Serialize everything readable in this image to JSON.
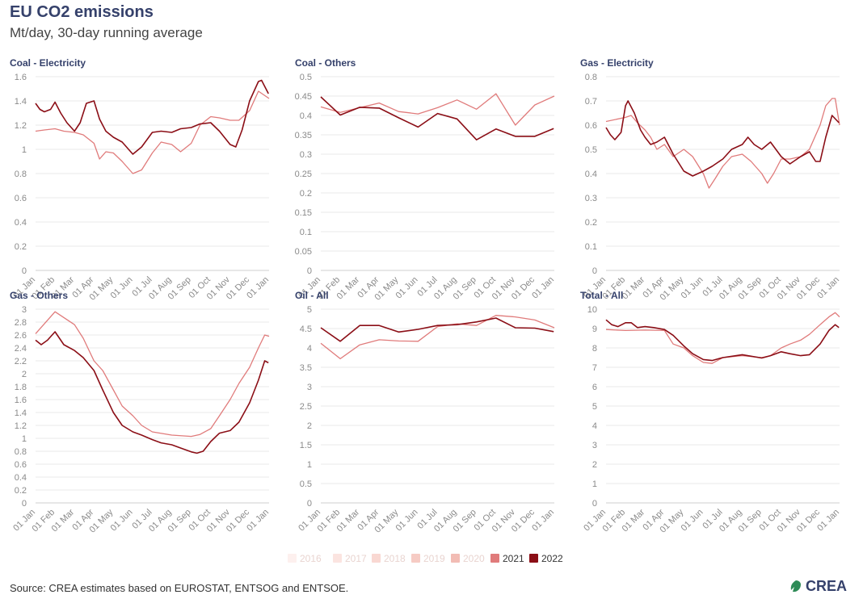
{
  "title": "EU CO2 emissions",
  "subtitle": "Mt/day, 30-day running average",
  "source": "Source: CREA estimates based on EUROSTAT, ENTSOG and ENTSOE.",
  "logo_text": "CREA",
  "colors": {
    "2016": "#fdf0ee",
    "2017": "#fbe4e0",
    "2018": "#f9d8d2",
    "2019": "#f6cbc4",
    "2020": "#f2bcb4",
    "2021": "#e07b7b",
    "2022": "#8b0e16",
    "grid": "#e8e8e8",
    "title": "#35416b"
  },
  "legend": [
    {
      "label": "2016",
      "active": false
    },
    {
      "label": "2017",
      "active": false
    },
    {
      "label": "2018",
      "active": false
    },
    {
      "label": "2019",
      "active": false
    },
    {
      "label": "2020",
      "active": false
    },
    {
      "label": "2021",
      "active": true
    },
    {
      "label": "2022",
      "active": true
    }
  ],
  "x_ticks": [
    "01 Jan",
    "01 Feb",
    "01 Mar",
    "01 Apr",
    "01 May",
    "01 Jun",
    "01 Jul",
    "01 Aug",
    "01 Sep",
    "01 Oct",
    "01 Nov",
    "01 Dec",
    "01 Jan"
  ],
  "chart_data": [
    {
      "type": "line",
      "title": "Coal - Electricity",
      "yticks": [
        0,
        0.2,
        0.4,
        0.6,
        0.8,
        1,
        1.2,
        1.4,
        1.6
      ],
      "ylim": [
        0,
        1.6
      ],
      "series": [
        {
          "name": "2021",
          "x": [
            "01 Jan",
            "15 Jan",
            "01 Feb",
            "15 Feb",
            "01 Mar",
            "15 Mar",
            "01 Apr",
            "10 Apr",
            "20 Apr",
            "01 May",
            "15 May",
            "01 Jun",
            "15 Jun",
            "01 Jul",
            "15 Jul",
            "01 Aug",
            "15 Aug",
            "01 Sep",
            "15 Sep",
            "01 Oct",
            "15 Oct",
            "01 Nov",
            "15 Nov",
            "01 Dec",
            "15 Dec",
            "01 Jan"
          ],
          "y": [
            1.15,
            1.16,
            1.17,
            1.15,
            1.14,
            1.12,
            1.05,
            0.92,
            0.98,
            0.97,
            0.9,
            0.8,
            0.83,
            0.97,
            1.06,
            1.04,
            0.98,
            1.05,
            1.2,
            1.27,
            1.26,
            1.24,
            1.24,
            1.32,
            1.48,
            1.42
          ]
        },
        {
          "name": "2022",
          "x": [
            "01 Jan",
            "08 Jan",
            "15 Jan",
            "25 Jan",
            "01 Feb",
            "10 Feb",
            "20 Feb",
            "01 Mar",
            "10 Mar",
            "20 Mar",
            "01 Apr",
            "10 Apr",
            "20 Apr",
            "01 May",
            "15 May",
            "01 Jun",
            "15 Jun",
            "01 Jul",
            "15 Jul",
            "01 Aug",
            "15 Aug",
            "01 Sep",
            "15 Sep",
            "01 Oct",
            "15 Oct",
            "01 Nov",
            "10 Nov",
            "20 Nov",
            "01 Dec",
            "15 Dec",
            "20 Dec",
            "31 Dec"
          ],
          "y": [
            1.38,
            1.33,
            1.31,
            1.33,
            1.39,
            1.3,
            1.22,
            1.15,
            1.22,
            1.38,
            1.4,
            1.25,
            1.15,
            1.1,
            1.06,
            0.96,
            1.02,
            1.14,
            1.15,
            1.14,
            1.17,
            1.18,
            1.21,
            1.22,
            1.15,
            1.04,
            1.02,
            1.16,
            1.4,
            1.56,
            1.57,
            1.46
          ]
        }
      ]
    },
    {
      "type": "line",
      "title": "Coal - Others",
      "yticks": [
        0,
        0.05,
        0.1,
        0.15,
        0.2,
        0.25,
        0.3,
        0.35,
        0.4,
        0.45,
        0.5
      ],
      "ylim": [
        0,
        0.5
      ],
      "series": [
        {
          "name": "2021",
          "x": [
            "01 Jan",
            "01 Feb",
            "01 Mar",
            "01 Apr",
            "01 May",
            "01 Jun",
            "01 Jul",
            "01 Aug",
            "01 Sep",
            "01 Oct",
            "01 Nov",
            "01 Dec",
            "01 Jan"
          ],
          "y": [
            0.422,
            0.408,
            0.42,
            0.432,
            0.41,
            0.404,
            0.42,
            0.44,
            0.416,
            0.456,
            0.375,
            0.427,
            0.45
          ]
        },
        {
          "name": "2022",
          "x": [
            "01 Jan",
            "01 Feb",
            "01 Mar",
            "01 Apr",
            "01 May",
            "01 Jun",
            "01 Jul",
            "01 Aug",
            "01 Sep",
            "01 Oct",
            "01 Nov",
            "01 Dec",
            "31 Dec"
          ],
          "y": [
            0.448,
            0.401,
            0.421,
            0.419,
            0.394,
            0.37,
            0.405,
            0.391,
            0.337,
            0.365,
            0.346,
            0.346,
            0.366
          ]
        }
      ]
    },
    {
      "type": "line",
      "title": "Gas - Electricity",
      "yticks": [
        0,
        0.1,
        0.2,
        0.3,
        0.4,
        0.5,
        0.6,
        0.7,
        0.8
      ],
      "ylim": [
        0,
        0.8
      ],
      "series": [
        {
          "name": "2021",
          "x": [
            "01 Jan",
            "01 Feb",
            "10 Feb",
            "20 Feb",
            "01 Mar",
            "10 Mar",
            "20 Mar",
            "01 Apr",
            "15 Apr",
            "01 May",
            "15 May",
            "01 Jun",
            "10 Jun",
            "20 Jun",
            "01 Jul",
            "15 Jul",
            "01 Aug",
            "15 Aug",
            "01 Sep",
            "10 Sep",
            "20 Sep",
            "01 Oct",
            "15 Oct",
            "01 Nov",
            "15 Nov",
            "01 Dec",
            "10 Dec",
            "20 Dec",
            "25 Dec",
            "01 Jan"
          ],
          "y": [
            0.615,
            0.632,
            0.64,
            0.61,
            0.58,
            0.55,
            0.5,
            0.52,
            0.47,
            0.5,
            0.47,
            0.4,
            0.34,
            0.38,
            0.43,
            0.47,
            0.48,
            0.45,
            0.4,
            0.36,
            0.4,
            0.46,
            0.46,
            0.47,
            0.5,
            0.6,
            0.68,
            0.71,
            0.71,
            0.6
          ]
        },
        {
          "name": "2022",
          "x": [
            "01 Jan",
            "08 Jan",
            "15 Jan",
            "25 Jan",
            "01 Feb",
            "05 Feb",
            "15 Feb",
            "25 Feb",
            "01 Mar",
            "10 Mar",
            "20 Mar",
            "01 Apr",
            "15 Apr",
            "01 May",
            "15 May",
            "01 Jun",
            "15 Jun",
            "01 Jul",
            "15 Jul",
            "01 Aug",
            "10 Aug",
            "20 Aug",
            "01 Sep",
            "15 Sep",
            "01 Oct",
            "15 Oct",
            "01 Nov",
            "15 Nov",
            "25 Nov",
            "01 Dec",
            "10 Dec",
            "20 Dec",
            "31 Dec"
          ],
          "y": [
            0.59,
            0.56,
            0.54,
            0.57,
            0.68,
            0.7,
            0.65,
            0.58,
            0.55,
            0.52,
            0.53,
            0.55,
            0.48,
            0.41,
            0.39,
            0.41,
            0.43,
            0.46,
            0.5,
            0.52,
            0.55,
            0.52,
            0.5,
            0.53,
            0.47,
            0.44,
            0.47,
            0.49,
            0.45,
            0.45,
            0.55,
            0.64,
            0.61
          ]
        }
      ]
    },
    {
      "type": "line",
      "title": "Gas - Others",
      "yticks": [
        0,
        0.2,
        0.4,
        0.6,
        0.8,
        1,
        1.2,
        1.4,
        1.6,
        1.8,
        2,
        2.2,
        2.4,
        2.6,
        2.8,
        3
      ],
      "ylim": [
        0,
        3
      ],
      "series": [
        {
          "name": "2021",
          "x": [
            "01 Jan",
            "01 Feb",
            "01 Mar",
            "15 Mar",
            "01 Apr",
            "15 Apr",
            "01 May",
            "15 May",
            "01 Jun",
            "15 Jun",
            "01 Jul",
            "01 Aug",
            "01 Sep",
            "15 Sep",
            "01 Oct",
            "15 Oct",
            "01 Nov",
            "15 Nov",
            "01 Dec",
            "15 Dec",
            "25 Dec",
            "01 Jan"
          ],
          "y": [
            2.62,
            2.96,
            2.76,
            2.55,
            2.2,
            2.05,
            1.75,
            1.5,
            1.35,
            1.2,
            1.1,
            1.05,
            1.03,
            1.06,
            1.15,
            1.35,
            1.6,
            1.85,
            2.1,
            2.4,
            2.6,
            2.58
          ]
        },
        {
          "name": "2022",
          "x": [
            "01 Jan",
            "10 Jan",
            "20 Jan",
            "01 Feb",
            "15 Feb",
            "01 Mar",
            "15 Mar",
            "01 Apr",
            "15 Apr",
            "01 May",
            "15 May",
            "01 Jun",
            "15 Jun",
            "01 Jul",
            "15 Jul",
            "01 Aug",
            "15 Aug",
            "01 Sep",
            "10 Sep",
            "20 Sep",
            "01 Oct",
            "15 Oct",
            "01 Nov",
            "15 Nov",
            "01 Dec",
            "15 Dec",
            "25 Dec",
            "31 Dec"
          ],
          "y": [
            2.52,
            2.45,
            2.52,
            2.65,
            2.45,
            2.36,
            2.25,
            2.05,
            1.75,
            1.4,
            1.2,
            1.1,
            1.05,
            0.98,
            0.93,
            0.9,
            0.85,
            0.79,
            0.77,
            0.8,
            0.95,
            1.08,
            1.12,
            1.25,
            1.55,
            1.9,
            2.2,
            2.17
          ]
        }
      ]
    },
    {
      "type": "line",
      "title": "Oil - All",
      "yticks": [
        0,
        0.5,
        1,
        1.5,
        2,
        2.5,
        3,
        3.5,
        4,
        4.5,
        5
      ],
      "ylim": [
        0,
        5
      ],
      "series": [
        {
          "name": "2021",
          "x": [
            "01 Jan",
            "01 Feb",
            "01 Mar",
            "01 Apr",
            "01 May",
            "01 Jun",
            "01 Jul",
            "01 Aug",
            "01 Sep",
            "01 Oct",
            "01 Nov",
            "01 Dec",
            "01 Jan"
          ],
          "y": [
            4.12,
            3.72,
            4.08,
            4.21,
            4.18,
            4.17,
            4.55,
            4.62,
            4.58,
            4.84,
            4.8,
            4.72,
            4.52
          ]
        },
        {
          "name": "2022",
          "x": [
            "01 Jan",
            "01 Feb",
            "01 Mar",
            "01 Apr",
            "01 May",
            "01 Jun",
            "01 Jul",
            "01 Aug",
            "01 Sep",
            "01 Oct",
            "01 Nov",
            "01 Dec",
            "31 Dec"
          ],
          "y": [
            4.52,
            4.17,
            4.58,
            4.58,
            4.41,
            4.48,
            4.58,
            4.6,
            4.67,
            4.77,
            4.52,
            4.51,
            4.42
          ]
        }
      ]
    },
    {
      "type": "line",
      "title": "Total - All",
      "yticks": [
        0,
        1,
        2,
        3,
        4,
        5,
        6,
        7,
        8,
        9,
        10
      ],
      "ylim": [
        0,
        10
      ],
      "series": [
        {
          "name": "2021",
          "x": [
            "01 Jan",
            "01 Feb",
            "01 Mar",
            "01 Apr",
            "15 Apr",
            "01 May",
            "15 May",
            "01 Jun",
            "15 Jun",
            "01 Jul",
            "01 Aug",
            "01 Sep",
            "15 Sep",
            "01 Oct",
            "15 Oct",
            "01 Nov",
            "15 Nov",
            "01 Dec",
            "15 Dec",
            "25 Dec",
            "01 Jan"
          ],
          "y": [
            8.95,
            8.9,
            8.92,
            8.9,
            8.2,
            8.0,
            7.6,
            7.25,
            7.2,
            7.5,
            7.6,
            7.5,
            7.6,
            8.0,
            8.2,
            8.4,
            8.7,
            9.2,
            9.6,
            9.82,
            9.6
          ]
        },
        {
          "name": "2022",
          "x": [
            "01 Jan",
            "10 Jan",
            "20 Jan",
            "01 Feb",
            "10 Feb",
            "20 Feb",
            "01 Mar",
            "15 Mar",
            "01 Apr",
            "15 Apr",
            "01 May",
            "15 May",
            "01 Jun",
            "15 Jun",
            "01 Jul",
            "01 Aug",
            "01 Sep",
            "15 Sep",
            "01 Oct",
            "15 Oct",
            "01 Nov",
            "15 Nov",
            "01 Dec",
            "15 Dec",
            "25 Dec",
            "31 Dec"
          ],
          "y": [
            9.45,
            9.2,
            9.1,
            9.3,
            9.3,
            9.05,
            9.1,
            9.05,
            8.95,
            8.65,
            8.1,
            7.7,
            7.4,
            7.35,
            7.5,
            7.65,
            7.48,
            7.6,
            7.8,
            7.7,
            7.6,
            7.65,
            8.2,
            8.9,
            9.2,
            9.05
          ]
        }
      ]
    }
  ]
}
